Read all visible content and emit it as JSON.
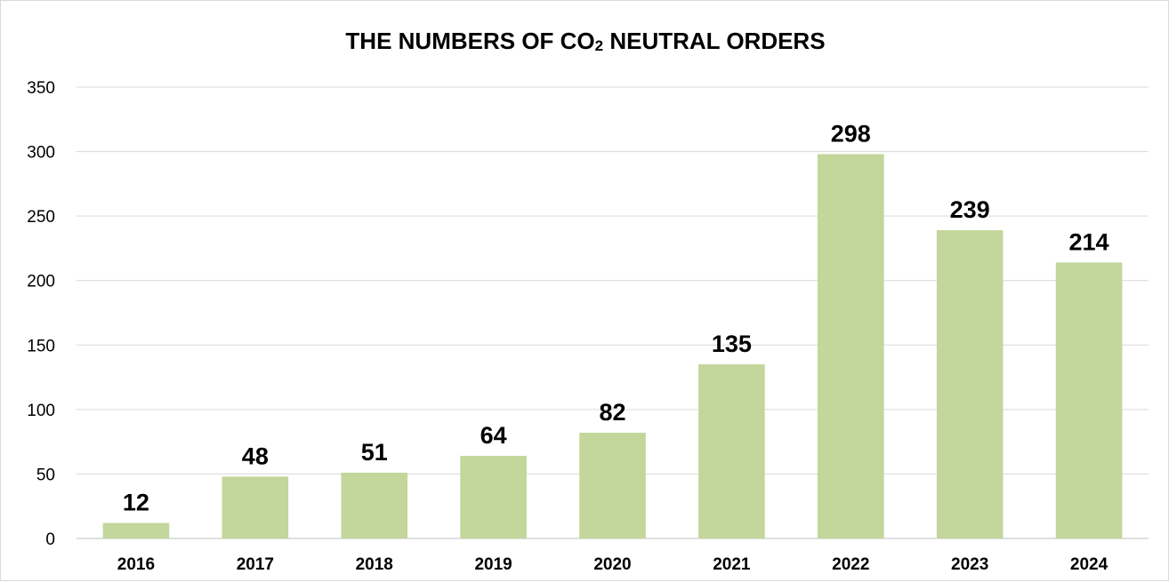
{
  "chart_data": {
    "type": "bar",
    "title_main": "THE NUMBERS OF CO",
    "title_sub": "2",
    "title_rest": " NEUTRAL ORDERS",
    "categories": [
      "2016",
      "2017",
      "2018",
      "2019",
      "2020",
      "2021",
      "2022",
      "2023",
      "2024"
    ],
    "values": [
      12,
      48,
      51,
      64,
      82,
      135,
      298,
      239,
      214
    ],
    "data_labels": [
      "12",
      "48",
      "51",
      "64",
      "82",
      "135",
      "298",
      "239",
      "214"
    ],
    "ylim": [
      0,
      350
    ],
    "yticks": [
      0,
      50,
      100,
      150,
      200,
      250,
      300,
      350
    ],
    "ytick_labels": [
      "0",
      "50",
      "100",
      "150",
      "200",
      "250",
      "300",
      "350"
    ],
    "grid": true,
    "legend": "none",
    "xlabel": "",
    "ylabel": ""
  },
  "colors": {
    "bar": "#c3d69b",
    "grid": "#d9d9d9",
    "axis": "#bfbfbf",
    "text": "#000000"
  }
}
